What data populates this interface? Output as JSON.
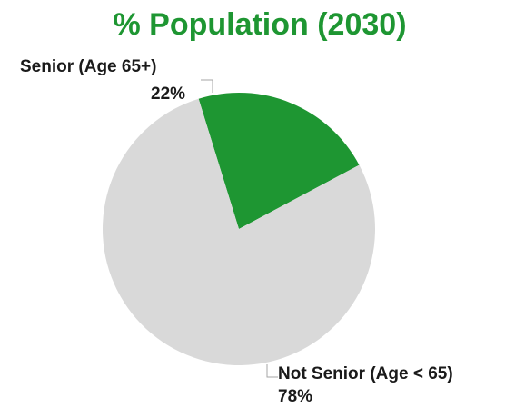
{
  "chart_data": {
    "type": "pie",
    "title": "% Population (2030)",
    "categories": [
      "Senior (Age 65+)",
      "Not Senior (Age < 65)"
    ],
    "values": [
      22,
      78
    ],
    "value_labels": [
      "22%",
      "78%"
    ],
    "colors": [
      "#1e9632",
      "#d9d9d9"
    ],
    "title_color": "#1e9632",
    "legend": "none"
  }
}
